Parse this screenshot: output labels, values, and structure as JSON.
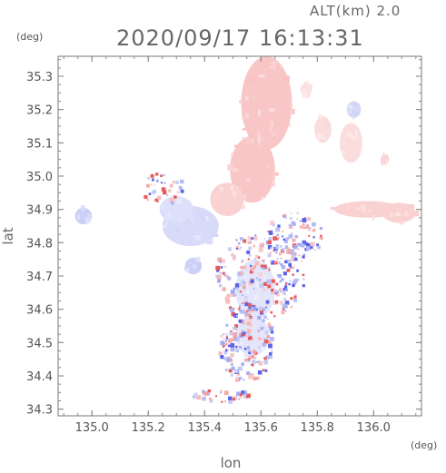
{
  "header": {
    "altitude_label": "ALT(km) 2.0",
    "datetime": "2020/09/17 16:13:31"
  },
  "axes": {
    "y_unit": "(deg)",
    "x_unit": "(deg)",
    "xlabel": "lon",
    "ylabel": "lat"
  },
  "chart_data": {
    "type": "heatmap",
    "title": "2020/09/17 16:13:31",
    "subtitle": "ALT(km) 2.0",
    "xlabel": "lon",
    "ylabel": "lat",
    "xlim": [
      134.88,
      136.17
    ],
    "ylim": [
      34.28,
      35.36
    ],
    "x_ticks": [
      135.0,
      135.2,
      135.4,
      135.6,
      135.8,
      136.0
    ],
    "x_tick_labels": [
      "135.0",
      "135.2",
      "135.4",
      "135.6",
      "135.8",
      "136.0"
    ],
    "y_ticks": [
      34.3,
      34.4,
      34.5,
      34.6,
      34.7,
      34.8,
      34.9,
      35.0,
      35.1,
      35.2,
      35.3
    ],
    "y_tick_labels": [
      "34.3",
      "34.4",
      "34.5",
      "34.6",
      "34.7",
      "34.8",
      "34.9",
      "35.0",
      "35.1",
      "35.2",
      "35.3"
    ],
    "colors": {
      "positive": "#f4a0a0",
      "negative": "#a0a8f0",
      "strong_positive": "#e85a5a",
      "strong_negative": "#5a64e8"
    },
    "regions": [
      {
        "lon": 135.62,
        "lat": 35.22,
        "rx": 0.09,
        "ry": 0.14,
        "sign": 1,
        "strength": 0.5
      },
      {
        "lon": 135.57,
        "lat": 35.02,
        "rx": 0.08,
        "ry": 0.1,
        "sign": 1,
        "strength": 0.5
      },
      {
        "lon": 135.48,
        "lat": 34.93,
        "rx": 0.06,
        "ry": 0.05,
        "sign": 1,
        "strength": 0.4
      },
      {
        "lon": 135.35,
        "lat": 34.85,
        "rx": 0.1,
        "ry": 0.06,
        "sign": -1,
        "strength": 0.35
      },
      {
        "lon": 135.3,
        "lat": 34.9,
        "rx": 0.06,
        "ry": 0.04,
        "sign": -1,
        "strength": 0.3
      },
      {
        "lon": 134.97,
        "lat": 34.88,
        "rx": 0.03,
        "ry": 0.025,
        "sign": -1,
        "strength": 0.45
      },
      {
        "lon": 135.36,
        "lat": 34.73,
        "rx": 0.03,
        "ry": 0.025,
        "sign": -1,
        "strength": 0.45
      },
      {
        "lon": 135.58,
        "lat": 34.66,
        "rx": 0.07,
        "ry": 0.09,
        "sign": -1,
        "strength": 0.25
      },
      {
        "lon": 135.57,
        "lat": 34.52,
        "rx": 0.06,
        "ry": 0.06,
        "sign": -1,
        "strength": 0.25
      },
      {
        "lon": 135.98,
        "lat": 34.9,
        "rx": 0.12,
        "ry": 0.025,
        "sign": 1,
        "strength": 0.4
      },
      {
        "lon": 136.09,
        "lat": 34.89,
        "rx": 0.06,
        "ry": 0.03,
        "sign": 1,
        "strength": 0.4
      },
      {
        "lon": 135.92,
        "lat": 35.1,
        "rx": 0.04,
        "ry": 0.06,
        "sign": 1,
        "strength": 0.3
      },
      {
        "lon": 135.82,
        "lat": 35.14,
        "rx": 0.03,
        "ry": 0.04,
        "sign": 1,
        "strength": 0.3
      },
      {
        "lon": 135.93,
        "lat": 35.2,
        "rx": 0.025,
        "ry": 0.025,
        "sign": -1,
        "strength": 0.4
      },
      {
        "lon": 135.76,
        "lat": 35.26,
        "rx": 0.02,
        "ry": 0.02,
        "sign": 1,
        "strength": 0.3
      },
      {
        "lon": 136.04,
        "lat": 35.05,
        "rx": 0.015,
        "ry": 0.015,
        "sign": 1,
        "strength": 0.4
      }
    ],
    "speckle_zones": [
      {
        "lon": 135.6,
        "lat": 34.7,
        "rx": 0.16,
        "ry": 0.13,
        "count": 220
      },
      {
        "lon": 135.55,
        "lat": 34.5,
        "rx": 0.1,
        "ry": 0.12,
        "count": 160
      },
      {
        "lon": 135.72,
        "lat": 34.82,
        "rx": 0.1,
        "ry": 0.07,
        "count": 90
      },
      {
        "lon": 135.46,
        "lat": 34.34,
        "rx": 0.1,
        "ry": 0.02,
        "count": 30
      },
      {
        "lon": 135.25,
        "lat": 34.96,
        "rx": 0.08,
        "ry": 0.05,
        "count": 40
      }
    ]
  }
}
